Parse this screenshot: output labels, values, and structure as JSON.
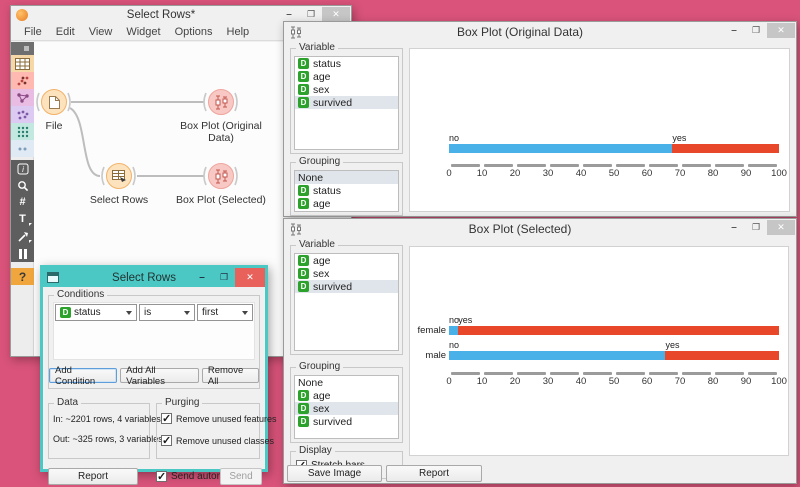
{
  "main_window": {
    "title": "Select Rows*",
    "menu": [
      "File",
      "Edit",
      "View",
      "Widget",
      "Options",
      "Help"
    ],
    "toolbar": [
      {
        "name": "toolbox-dock-handle",
        "glyph": "dock",
        "bg": "#6f6f6f"
      },
      {
        "name": "category-data",
        "glyph": "table",
        "bg": "#f6d8a8"
      },
      {
        "name": "category-visualize",
        "glyph": "scatter",
        "bg": "#ffb9b0"
      },
      {
        "name": "category-model",
        "glyph": "network",
        "bg": "#e9bce4"
      },
      {
        "name": "category-evaluate",
        "glyph": "dots",
        "bg": "#dccaf2"
      },
      {
        "name": "category-unsupervised",
        "glyph": "grid",
        "bg": "#c2e8df"
      },
      {
        "name": "category-more",
        "glyph": "more",
        "bg": "#dfeaf4"
      },
      {
        "name": "tool-widget-info",
        "glyph": "info",
        "bg": "#5e5e5e"
      },
      {
        "name": "tool-zoom",
        "glyph": "zoom",
        "bg": "#5e5e5e"
      },
      {
        "name": "tool-grid-align",
        "glyph": "hash",
        "bg": "#5e5e5e"
      },
      {
        "name": "tool-text",
        "glyph": "text",
        "bg": "#5e5e5e"
      },
      {
        "name": "tool-arrow",
        "glyph": "arrow",
        "bg": "#5e5e5e"
      },
      {
        "name": "tool-freeze",
        "glyph": "freeze",
        "bg": "#5e5e5e"
      },
      {
        "name": "tool-help",
        "glyph": "help",
        "bg": "#f0a63d"
      }
    ],
    "nodes": [
      {
        "id": "file",
        "label": "File"
      },
      {
        "id": "box-plot-original",
        "label": "Box Plot (Original Data)"
      },
      {
        "id": "select-rows",
        "label": "Select Rows"
      },
      {
        "id": "box-plot-selected",
        "label": "Box Plot (Selected)"
      }
    ]
  },
  "select_rows_dialog": {
    "title": "Select Rows",
    "conditions": {
      "label": "Conditions",
      "condition": {
        "variable": "status",
        "operator": "is",
        "value": "first"
      },
      "buttons": [
        "Add Condition",
        "Add All Variables",
        "Remove All"
      ]
    },
    "data": {
      "label": "Data",
      "in_line": "In: ~2201 rows, 4 variables",
      "out_line": "Out: ~325 rows, 3 variables"
    },
    "purging": {
      "label": "Purging",
      "items": [
        "Remove unused features",
        "Remove unused classes"
      ]
    },
    "report_label": "Report",
    "send_auto_label": "Send automatically",
    "send_label": "Send"
  },
  "box_plot_original": {
    "title": "Box Plot (Original Data)",
    "variable_label": "Variable",
    "variables": [
      "status",
      "age",
      "sex",
      "survived"
    ],
    "selected_variable": "survived",
    "grouping_label": "Grouping",
    "groupings": [
      "None",
      "status",
      "age",
      "sex",
      "survived"
    ],
    "selected_grouping": "None"
  },
  "box_plot_selected": {
    "title": "Box Plot (Selected)",
    "variable_label": "Variable",
    "variables": [
      "age",
      "sex",
      "survived"
    ],
    "selected_variable": "survived",
    "grouping_label": "Grouping",
    "groupings": [
      "None",
      "age",
      "sex",
      "survived"
    ],
    "selected_grouping": "sex",
    "display_label": "Display",
    "stretch_label": "Stretch bars",
    "save_image_label": "Save Image",
    "report_label": "Report"
  },
  "colors": {
    "desktop": "#d9537a",
    "dialog_accent": "#4cc8c4",
    "bar_no": "#49b1e8",
    "bar_yes": "#e9472a",
    "discrete_icon": "#2ca12c"
  },
  "chart_data": [
    {
      "type": "bar",
      "title": "Box Plot (Original Data) — survived",
      "orientation": "horizontal",
      "stacked": true,
      "categories": [
        ""
      ],
      "series": [
        {
          "name": "no",
          "values": [
            67.7
          ],
          "color": "#49b1e8"
        },
        {
          "name": "yes",
          "values": [
            32.3
          ],
          "color": "#e9472a"
        }
      ],
      "xlim": [
        0,
        100
      ],
      "xticks": [
        0,
        10,
        20,
        30,
        40,
        50,
        60,
        70,
        80,
        90,
        100
      ],
      "grid": false,
      "legend": "labels-above-bars"
    },
    {
      "type": "bar",
      "title": "Box Plot (Selected) — survived grouped by sex",
      "orientation": "horizontal",
      "stacked": true,
      "categories": [
        "female",
        "male"
      ],
      "series": [
        {
          "name": "no",
          "values": [
            2.8,
            65.6
          ],
          "color": "#49b1e8"
        },
        {
          "name": "yes",
          "values": [
            97.2,
            34.4
          ],
          "color": "#e9472a"
        }
      ],
      "xlim": [
        0,
        100
      ],
      "xticks": [
        0,
        10,
        20,
        30,
        40,
        50,
        60,
        70,
        80,
        90,
        100
      ],
      "grid": false,
      "legend": "labels-above-bars"
    }
  ]
}
